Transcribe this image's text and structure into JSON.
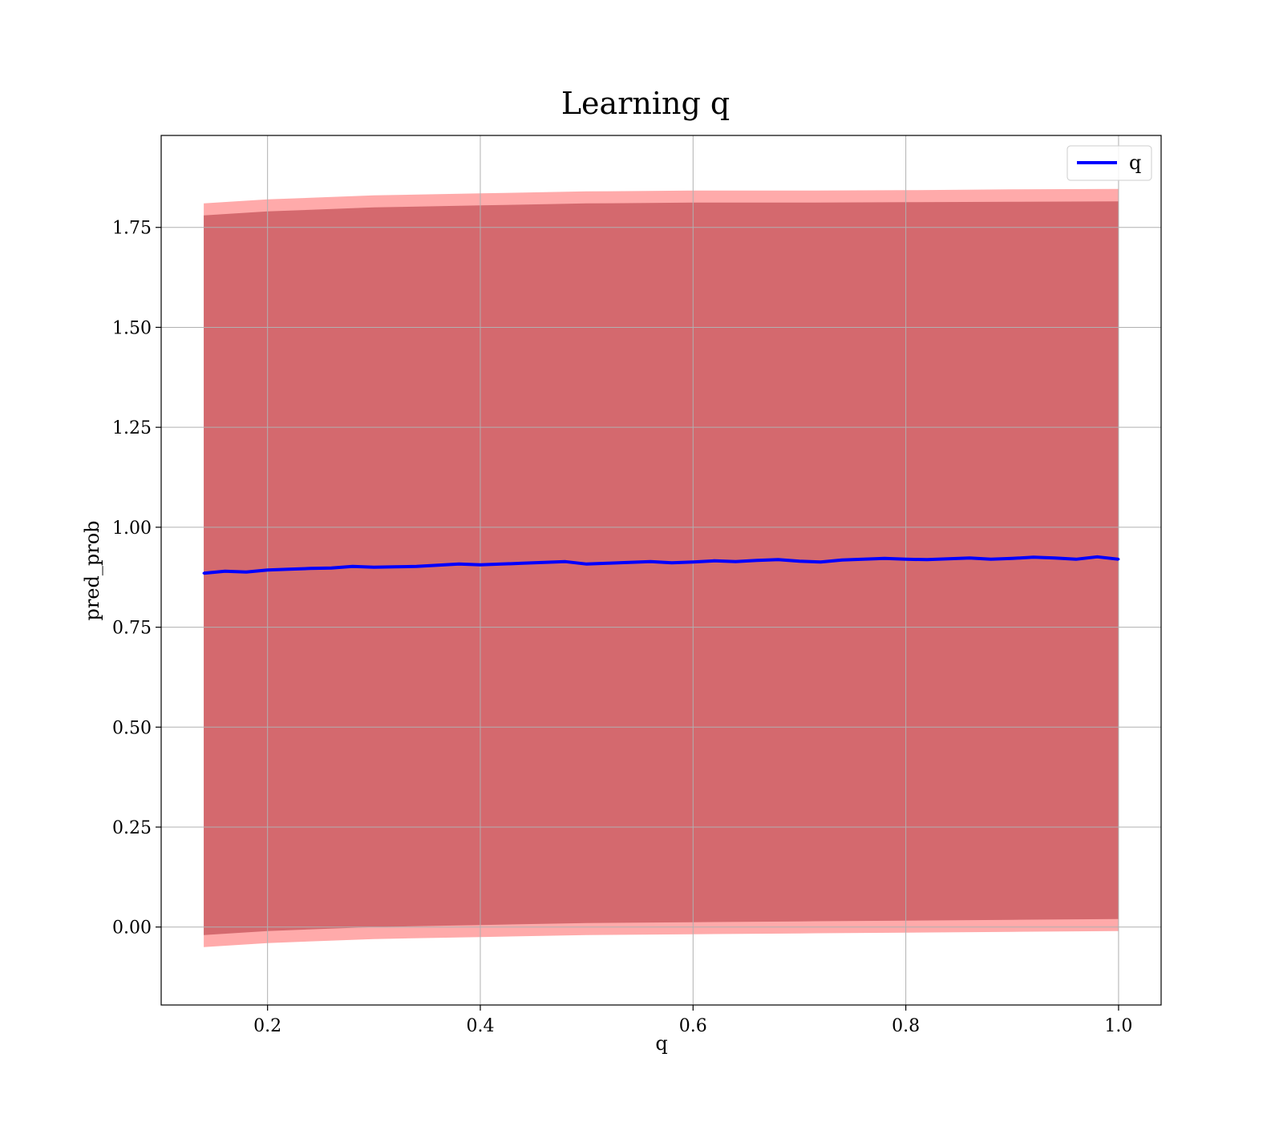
{
  "chart_data": {
    "type": "line",
    "title": "Learning q",
    "xlabel": "q",
    "ylabel": "pred_prob",
    "xlim": [
      0.1,
      1.04
    ],
    "ylim": [
      -0.195,
      1.98
    ],
    "xticks": [
      0.2,
      0.4,
      0.6,
      0.8,
      1.0
    ],
    "xtick_labels": [
      "0.2",
      "0.4",
      "0.6",
      "0.8",
      "1.0"
    ],
    "yticks": [
      0.0,
      0.25,
      0.5,
      0.75,
      1.0,
      1.25,
      1.5,
      1.75
    ],
    "ytick_labels": [
      "0.00",
      "0.25",
      "0.50",
      "0.75",
      "1.00",
      "1.25",
      "1.50",
      "1.75"
    ],
    "grid": true,
    "legend_position": "top-right",
    "series": [
      {
        "name": "q",
        "color": "#0000ff",
        "x": [
          0.14,
          0.16,
          0.18,
          0.2,
          0.22,
          0.24,
          0.26,
          0.28,
          0.3,
          0.32,
          0.34,
          0.36,
          0.38,
          0.4,
          0.42,
          0.44,
          0.46,
          0.48,
          0.5,
          0.52,
          0.54,
          0.56,
          0.58,
          0.6,
          0.62,
          0.64,
          0.66,
          0.68,
          0.7,
          0.72,
          0.74,
          0.76,
          0.78,
          0.8,
          0.82,
          0.84,
          0.86,
          0.88,
          0.9,
          0.92,
          0.94,
          0.96,
          0.98,
          1.0
        ],
        "values": [
          0.885,
          0.89,
          0.888,
          0.893,
          0.895,
          0.897,
          0.898,
          0.902,
          0.9,
          0.901,
          0.902,
          0.905,
          0.908,
          0.906,
          0.908,
          0.91,
          0.912,
          0.914,
          0.908,
          0.91,
          0.912,
          0.914,
          0.911,
          0.913,
          0.916,
          0.914,
          0.917,
          0.919,
          0.915,
          0.913,
          0.918,
          0.92,
          0.922,
          0.92,
          0.919,
          0.921,
          0.923,
          0.92,
          0.922,
          0.925,
          0.923,
          0.92,
          0.926,
          0.92
        ]
      }
    ],
    "bands": [
      {
        "color": "#a0707a",
        "x": [
          0.14,
          0.2,
          0.3,
          0.4,
          0.5,
          0.6,
          0.7,
          0.8,
          0.9,
          1.0
        ],
        "upper": [
          1.78,
          1.79,
          1.8,
          1.805,
          1.81,
          1.812,
          1.812,
          1.813,
          1.814,
          1.815
        ],
        "lower": [
          -0.02,
          -0.01,
          0.0,
          0.005,
          0.01,
          0.012,
          0.014,
          0.016,
          0.018,
          0.02
        ]
      },
      {
        "color": "#ff6464",
        "x": [
          0.14,
          0.2,
          0.3,
          0.4,
          0.5,
          0.6,
          0.7,
          0.8,
          0.9,
          1.0
        ],
        "upper": [
          1.81,
          1.82,
          1.83,
          1.835,
          1.84,
          1.842,
          1.842,
          1.843,
          1.845,
          1.846
        ],
        "lower": [
          -0.05,
          -0.04,
          -0.03,
          -0.025,
          -0.02,
          -0.018,
          -0.016,
          -0.014,
          -0.012,
          -0.01
        ]
      }
    ]
  }
}
